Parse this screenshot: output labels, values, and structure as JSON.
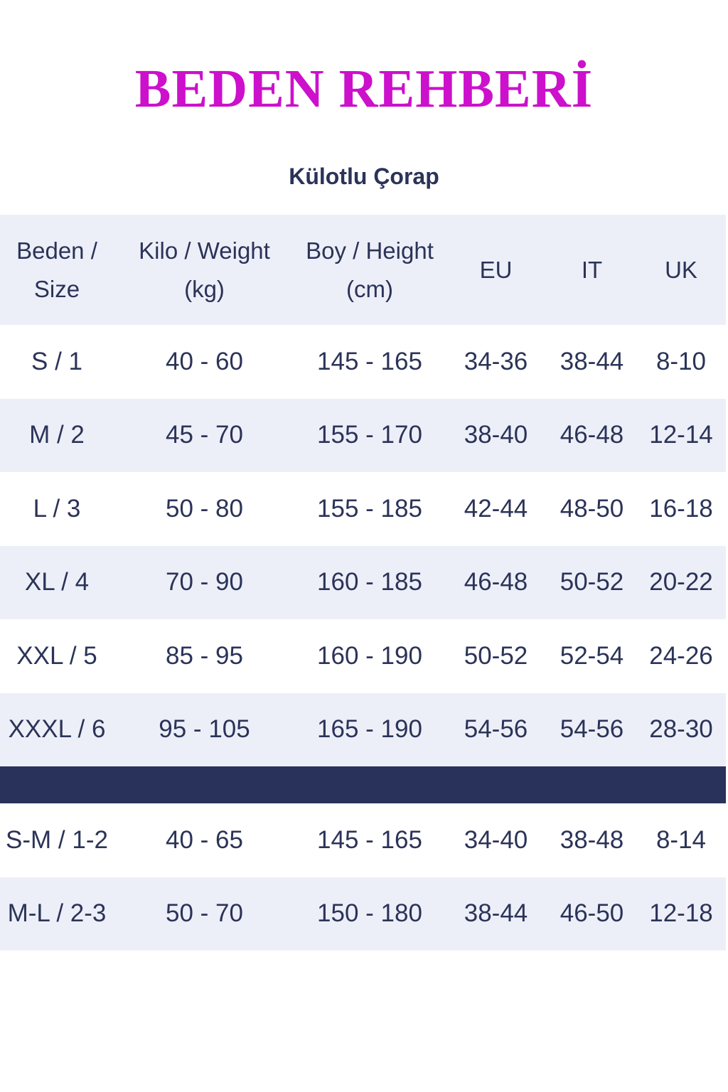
{
  "title": "BEDEN REHBERİ",
  "subtitle": "Külotlu Çorap",
  "colors": {
    "title": "#cc10cc",
    "text": "#2b3358",
    "row_alt": "#edeff8",
    "band": "#29325a"
  },
  "table": {
    "headers": [
      [
        "Beden /",
        "Size"
      ],
      [
        "Kilo / Weight",
        "(kg)"
      ],
      [
        "Boy / Height",
        "(cm)"
      ],
      [
        "EU"
      ],
      [
        "IT"
      ],
      [
        "UK"
      ]
    ],
    "rows": [
      [
        "S / 1",
        "40 - 60",
        "145 - 165",
        "34-36",
        "38-44",
        "8-10"
      ],
      [
        "M / 2",
        "45 - 70",
        "155 - 170",
        "38-40",
        "46-48",
        "12-14"
      ],
      [
        "L / 3",
        "50 - 80",
        "155 - 185",
        "42-44",
        "48-50",
        "16-18"
      ],
      [
        "XL / 4",
        "70 - 90",
        "160 - 185",
        "46-48",
        "50-52",
        "20-22"
      ],
      [
        "XXL / 5",
        "85 - 95",
        "160 - 190",
        "50-52",
        "52-54",
        "24-26"
      ],
      [
        "XXXL / 6",
        "95 - 105",
        "165 - 190",
        "54-56",
        "54-56",
        "28-30"
      ]
    ],
    "rows2": [
      [
        "S-M / 1-2",
        "40 - 65",
        "145 - 165",
        "34-40",
        "38-48",
        "8-14"
      ],
      [
        "M-L / 2-3",
        "50 - 70",
        "150 - 180",
        "38-44",
        "46-50",
        "12-18"
      ]
    ]
  }
}
